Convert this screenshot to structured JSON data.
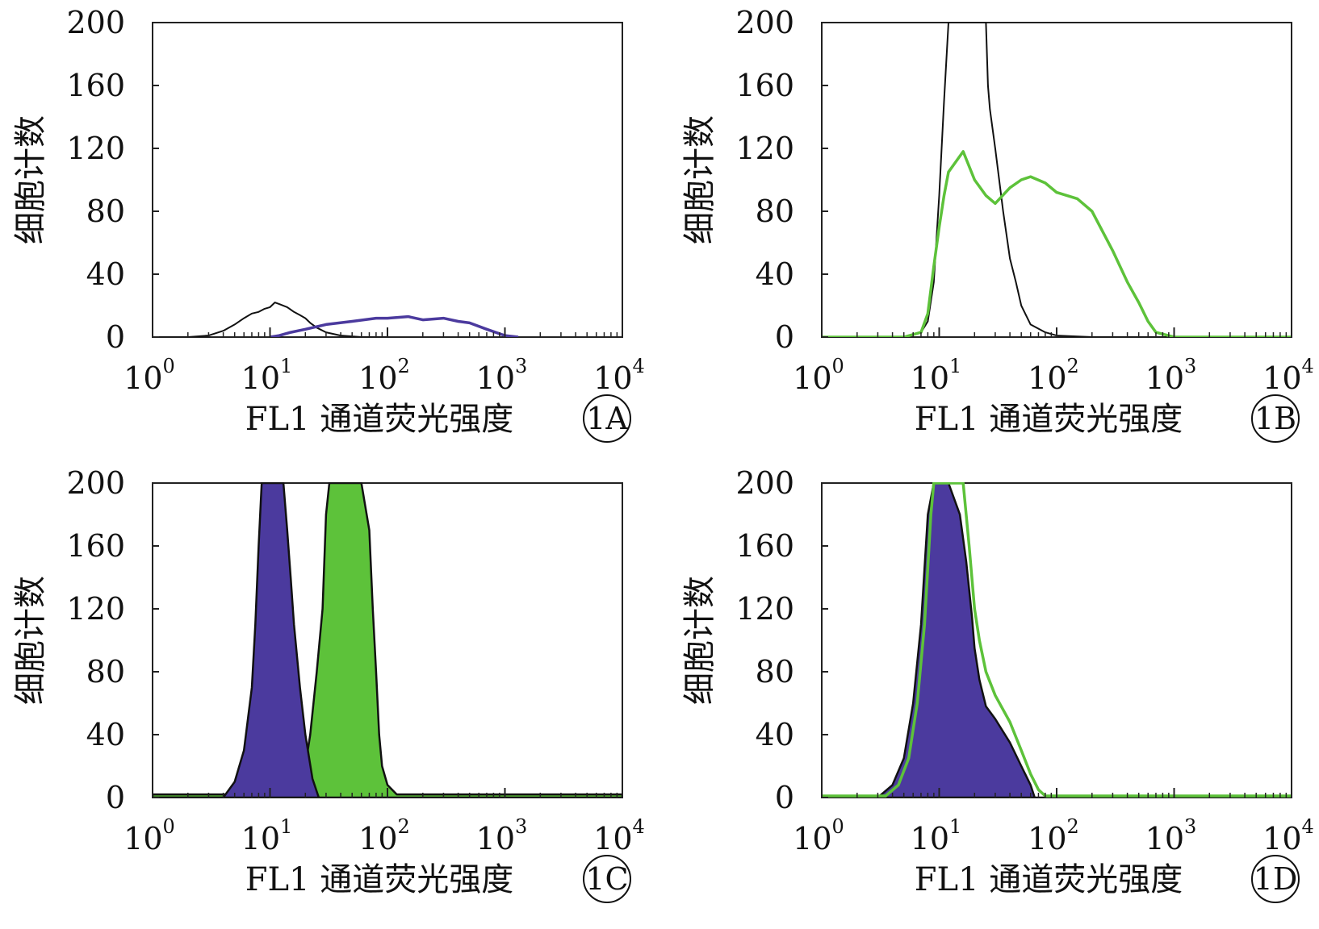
{
  "chart_data": [
    {
      "type": "area",
      "panel": "1A",
      "xlabel": "FL1 通道荧光强度",
      "ylabel": "细胞计数",
      "x_scale": "log",
      "xlim": [
        1,
        10000
      ],
      "ylim": [
        0,
        200
      ],
      "yticks": [
        "0",
        "40",
        "80",
        "120",
        "160",
        "200"
      ],
      "xticks": [
        {
          "base": "10",
          "exp": "0"
        },
        {
          "base": "10",
          "exp": "1"
        },
        {
          "base": "10",
          "exp": "2"
        },
        {
          "base": "10",
          "exp": "3"
        },
        {
          "base": "10",
          "exp": "4"
        }
      ],
      "series": [
        {
          "color": "#111111",
          "style": "line",
          "fill": false,
          "x": [
            1,
            2,
            3,
            4,
            5,
            6,
            7,
            8,
            9,
            10,
            11,
            12,
            14,
            16,
            18,
            20,
            22,
            25,
            30,
            40,
            60,
            100
          ],
          "y": [
            0,
            0,
            1,
            4,
            8,
            12,
            15,
            16,
            18,
            19,
            22,
            21,
            19,
            16,
            14,
            12,
            9,
            6,
            3,
            1,
            0,
            0
          ]
        },
        {
          "color": "#4b3a9e",
          "style": "line",
          "fill": false,
          "x": [
            10,
            12,
            15,
            20,
            30,
            50,
            80,
            100,
            150,
            200,
            300,
            400,
            500,
            700,
            1000,
            1300
          ],
          "y": [
            0,
            1,
            3,
            5,
            8,
            10,
            12,
            12,
            13,
            11,
            12,
            10,
            9,
            5,
            1,
            0
          ]
        }
      ]
    },
    {
      "type": "area",
      "panel": "1B",
      "xlabel": "FL1 通道荧光强度",
      "ylabel": "细胞计数",
      "x_scale": "log",
      "xlim": [
        1,
        10000
      ],
      "ylim": [
        0,
        200
      ],
      "yticks": [
        "0",
        "40",
        "80",
        "120",
        "160",
        "200"
      ],
      "xticks": [
        {
          "base": "10",
          "exp": "0"
        },
        {
          "base": "10",
          "exp": "1"
        },
        {
          "base": "10",
          "exp": "2"
        },
        {
          "base": "10",
          "exp": "3"
        },
        {
          "base": "10",
          "exp": "4"
        }
      ],
      "series": [
        {
          "color": "#111111",
          "style": "line",
          "fill": false,
          "x": [
            1,
            5,
            7,
            8,
            9,
            10,
            11,
            12,
            13,
            14,
            20,
            25,
            26,
            27,
            30,
            35,
            40,
            45,
            50,
            60,
            80,
            100,
            200,
            1000
          ],
          "y": [
            0,
            0,
            3,
            10,
            35,
            90,
            150,
            200,
            200,
            200,
            200,
            200,
            160,
            145,
            120,
            80,
            50,
            35,
            20,
            8,
            3,
            1,
            0,
            0
          ]
        },
        {
          "color": "#5dc23a",
          "style": "line",
          "fill": false,
          "x": [
            1,
            5,
            7,
            8,
            9,
            10,
            11,
            12,
            14,
            16,
            20,
            25,
            30,
            40,
            50,
            60,
            80,
            100,
            150,
            200,
            300,
            400,
            500,
            600,
            700,
            1000,
            10000
          ],
          "y": [
            0,
            0,
            3,
            15,
            45,
            70,
            90,
            105,
            112,
            118,
            100,
            90,
            85,
            95,
            100,
            102,
            98,
            92,
            88,
            80,
            55,
            35,
            22,
            10,
            3,
            0,
            0
          ]
        }
      ]
    },
    {
      "type": "area",
      "panel": "1C",
      "xlabel": "FL1 通道荧光强度",
      "ylabel": "细胞计数",
      "x_scale": "log",
      "xlim": [
        1,
        10000
      ],
      "ylim": [
        0,
        200
      ],
      "yticks": [
        "0",
        "40",
        "80",
        "120",
        "160",
        "200"
      ],
      "xticks": [
        {
          "base": "10",
          "exp": "0"
        },
        {
          "base": "10",
          "exp": "1"
        },
        {
          "base": "10",
          "exp": "2"
        },
        {
          "base": "10",
          "exp": "3"
        },
        {
          "base": "10",
          "exp": "4"
        }
      ],
      "series": [
        {
          "color": "#5dc23a",
          "style": "filled",
          "fill": true,
          "x": [
            1,
            15,
            18,
            20,
            22,
            25,
            28,
            30,
            32,
            35,
            40,
            50,
            60,
            70,
            75,
            80,
            85,
            90,
            100,
            120,
            10000
          ],
          "y": [
            2,
            2,
            8,
            20,
            40,
            80,
            120,
            180,
            200,
            200,
            200,
            200,
            200,
            170,
            120,
            80,
            40,
            20,
            8,
            2,
            2
          ]
        },
        {
          "color": "#4b3a9e",
          "style": "filled",
          "fill": true,
          "x": [
            1,
            4,
            5,
            6,
            7,
            7.5,
            8,
            8.5,
            9,
            10,
            12,
            13,
            14,
            15,
            16,
            18,
            20,
            23,
            26
          ],
          "y": [
            0,
            0,
            10,
            30,
            70,
            110,
            160,
            200,
            200,
            200,
            200,
            200,
            170,
            140,
            110,
            70,
            40,
            12,
            0
          ]
        }
      ]
    },
    {
      "type": "area",
      "panel": "1D",
      "xlabel": "FL1 通道荧光强度",
      "ylabel": "细胞计数",
      "x_scale": "log",
      "xlim": [
        1,
        10000
      ],
      "ylim": [
        0,
        200
      ],
      "yticks": [
        "0",
        "40",
        "80",
        "120",
        "160",
        "200"
      ],
      "xticks": [
        {
          "base": "10",
          "exp": "0"
        },
        {
          "base": "10",
          "exp": "1"
        },
        {
          "base": "10",
          "exp": "2"
        },
        {
          "base": "10",
          "exp": "3"
        },
        {
          "base": "10",
          "exp": "4"
        }
      ],
      "series": [
        {
          "color": "#4b3a9e",
          "style": "filled",
          "fill": true,
          "x": [
            1,
            3,
            4,
            5,
            6,
            7,
            8,
            9,
            10,
            12,
            15,
            17,
            19,
            20,
            22,
            25,
            30,
            40,
            50,
            60,
            65,
            10000
          ],
          "y": [
            0,
            0,
            8,
            25,
            60,
            110,
            180,
            200,
            200,
            200,
            180,
            150,
            115,
            95,
            75,
            58,
            50,
            35,
            20,
            8,
            0,
            0
          ]
        },
        {
          "color": "#5dc23a",
          "style": "line",
          "fill": false,
          "x": [
            1,
            3.5,
            4.5,
            5.5,
            6.5,
            7.5,
            8.5,
            9,
            10,
            13,
            16,
            18,
            20,
            22,
            25,
            30,
            40,
            50,
            60,
            70,
            80,
            10000
          ],
          "y": [
            1,
            1,
            8,
            25,
            60,
            110,
            180,
            200,
            200,
            200,
            200,
            160,
            120,
            100,
            80,
            65,
            48,
            30,
            15,
            5,
            1,
            1
          ]
        }
      ]
    }
  ]
}
